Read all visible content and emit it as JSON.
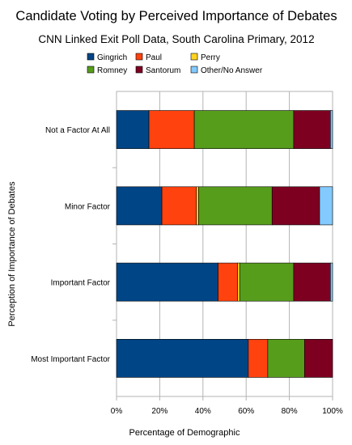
{
  "chart_data": {
    "type": "bar",
    "orientation": "horizontal",
    "stacked": true,
    "title": "Candidate Voting by Perceived Importance of Debates",
    "subtitle": "CNN Linked Exit Poll Data, South Carolina Primary, 2012",
    "xlabel": "Percentage of Demographic",
    "ylabel": "Perception of Importance of Debates",
    "xlim": [
      0,
      100
    ],
    "x_ticks": [
      "0%",
      "20%",
      "40%",
      "60%",
      "80%",
      "100%"
    ],
    "grid": "vertical",
    "legend_position": "top",
    "categories": [
      "Not a Factor At All",
      "Minor Factor",
      "Important Factor",
      "Most Important Factor"
    ],
    "series": [
      {
        "name": "Gingrich",
        "color": "#004586",
        "values": [
          15,
          21,
          47,
          61
        ]
      },
      {
        "name": "Paul",
        "color": "#ff420e",
        "values": [
          21,
          16,
          9,
          9
        ]
      },
      {
        "name": "Perry",
        "color": "#ffd320",
        "values": [
          0,
          1,
          1,
          0
        ]
      },
      {
        "name": "Romney",
        "color": "#579d1c",
        "values": [
          46,
          34,
          25,
          17
        ]
      },
      {
        "name": "Santorum",
        "color": "#7e0021",
        "values": [
          17,
          22,
          17,
          13
        ]
      },
      {
        "name": "Other/No Answer",
        "color": "#83caff",
        "values": [
          1,
          6,
          1,
          0
        ]
      }
    ]
  }
}
